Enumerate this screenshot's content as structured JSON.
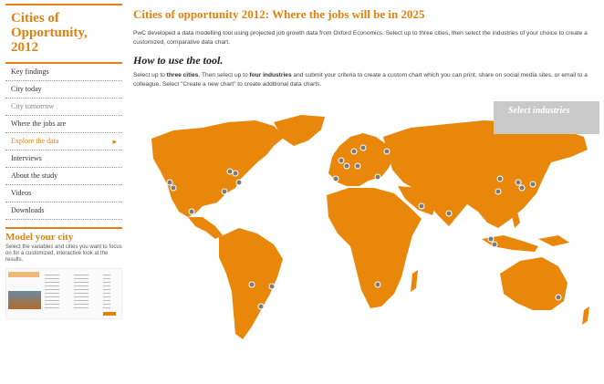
{
  "sidebar": {
    "title_lines": [
      "Cities of",
      "Opportunity,",
      "2012"
    ],
    "nav": [
      {
        "label": "Key findings"
      },
      {
        "label": "City today"
      },
      {
        "label": "City tomorrow"
      },
      {
        "label": "Where the jobs are"
      },
      {
        "label": "Explore the data"
      },
      {
        "label": "Interviews"
      },
      {
        "label": "About the study"
      },
      {
        "label": "Videos"
      },
      {
        "label": "Downloads"
      }
    ],
    "model": {
      "heading": "Model your city",
      "text": "Select the variables and cities you want to focus on for a customized, interactive look at the results."
    }
  },
  "main": {
    "title": "Cities of opportunity 2012: Where the jobs will be in 2025",
    "intro": "PwC developed a data modelling tool using projected job growth data from Oxford Economics. Select up to three cities, then select the industries of your choice to create a customized, comparative data chart.",
    "howto_heading": "How to use the tool.",
    "howto": {
      "t1": "Select up to ",
      "b1": "three cities",
      "t2": ". Then select up to ",
      "b2": "four industries",
      "t3": " and submit your criteria to create a custom chart which you can print, share on social media sites, or email to a colleague. Select \"Create a new chart\" to create additional data charts."
    }
  },
  "select_industries": "Select industries",
  "colors": {
    "accent": "#e2810f",
    "map": "#e9870a",
    "marker": "#7a7a7a",
    "panel": "#c9c9c9"
  }
}
